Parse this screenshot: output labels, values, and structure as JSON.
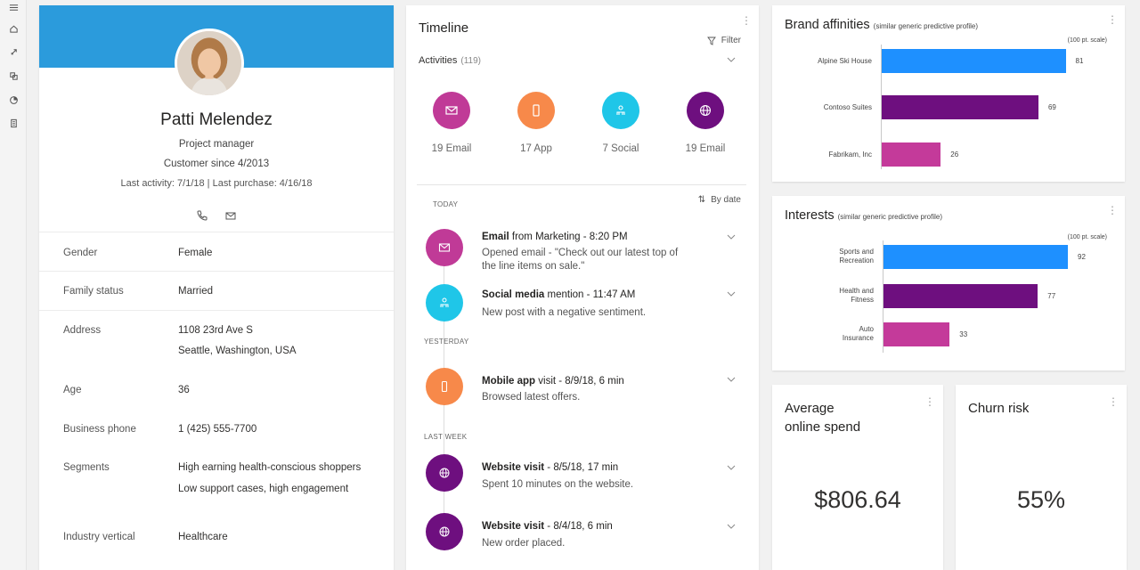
{
  "nav": {
    "icons": [
      "menu-icon",
      "home-icon",
      "rocket-icon",
      "segments-icon",
      "pie-chart-icon",
      "document-icon"
    ]
  },
  "profile": {
    "name": "Patti Melendez",
    "title": "Project manager",
    "customer_since": "Customer since 4/2013",
    "last_activity": "Last activity: 7/1/18  |  Last purchase: 4/16/18",
    "banner_color": "#2b9bdc",
    "fields": [
      {
        "label": "Gender",
        "value": "Female"
      },
      {
        "label": "Family status",
        "value": "Married"
      },
      {
        "label": "Address",
        "value": "1108 23rd Ave S",
        "value2": "Seattle, Washington, USA"
      },
      {
        "label": "Age",
        "value": "36"
      },
      {
        "label": "Business phone",
        "value": "1 (425) 555-7700"
      },
      {
        "label": "Segments",
        "value": "High earning health-conscious shoppers",
        "value2": "Low support cases, high engagement"
      },
      {
        "label": "Industry vertical",
        "value": "Healthcare"
      }
    ]
  },
  "timeline": {
    "title": "Timeline",
    "filter_label": "Filter",
    "activities_label": "Activities",
    "activities_count": "(119)",
    "sort_label": "By date",
    "summary": [
      {
        "label": "19 Email",
        "color": "#c03a97",
        "icon": "mail-icon"
      },
      {
        "label": "17 App",
        "color": "#f7894a",
        "icon": "phone-icon"
      },
      {
        "label": "7 Social",
        "color": "#1fc6e8",
        "icon": "people-icon"
      },
      {
        "label": "19 Email",
        "color": "#6e0f7f",
        "icon": "globe-icon"
      }
    ],
    "sections": {
      "today": "TODAY",
      "yesterday": "YESTERDAY",
      "last_week": "LAST WEEK"
    },
    "items": [
      {
        "title_bold": "Email",
        "title_rest": " from Marketing - 8:20 PM",
        "line1": "Opened  email - \"Check out our latest top of",
        "line2": "the line items on sale.\"",
        "color": "#c03a97"
      },
      {
        "title_bold": "Social media",
        "title_rest": " mention - 11:47 AM",
        "line1": "New post with a negative sentiment.",
        "color": "#1fc6e8"
      },
      {
        "title_bold": "Mobile app",
        "title_rest": " visit - 8/9/18, 6 min",
        "line1": "Browsed latest offers.",
        "color": "#f7894a"
      },
      {
        "title_bold": "Website visit",
        "title_rest": " - 8/5/18, 17 min",
        "line1": "Spent 10 minutes on the website.",
        "color": "#6e0f7f"
      },
      {
        "title_bold": "Website visit",
        "title_rest": " - 8/4/18, 6 min",
        "line1": "New order placed.",
        "color": "#6e0f7f"
      }
    ]
  },
  "brand_affinities": {
    "title": "Brand affinities",
    "subtitle": "(similar generic predictive profile)",
    "scale_label": "(100 pt. scale)",
    "chart_data": {
      "type": "bar",
      "orientation": "horizontal",
      "categories": [
        "Alpine Ski House",
        "Contoso Suites",
        "Fabrikam, Inc"
      ],
      "values": [
        81,
        69,
        26
      ],
      "colors": [
        "#1e90ff",
        "#6e0f7f",
        "#c43a9a"
      ],
      "xlim": [
        0,
        100
      ]
    }
  },
  "interests": {
    "title": "Interests",
    "subtitle": "(similar generic predictive profile)",
    "scale_label": "(100 pt. scale)",
    "chart_data": {
      "type": "bar",
      "orientation": "horizontal",
      "categories": [
        [
          "Sports and",
          "Recreation"
        ],
        [
          "Health and",
          "Fitness"
        ],
        [
          "Auto",
          "Insurance"
        ]
      ],
      "values": [
        92,
        77,
        33
      ],
      "colors": [
        "#1e90ff",
        "#6e0f7f",
        "#c43a9a"
      ],
      "xlim": [
        0,
        100
      ]
    }
  },
  "kpis": {
    "spend_title_1": "Average",
    "spend_title_2": "online spend",
    "spend_value": "$806.64",
    "churn_title": "Churn risk",
    "churn_value": "55%"
  }
}
